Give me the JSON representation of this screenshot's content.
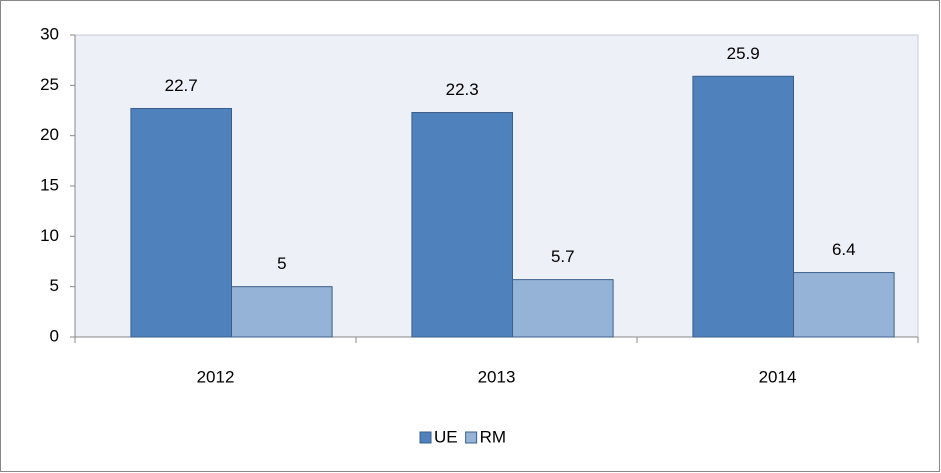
{
  "chart_data": {
    "type": "bar",
    "categories": [
      "2012",
      "2013",
      "2014"
    ],
    "series": [
      {
        "name": "UE",
        "color": "#4f81bd",
        "values": [
          22.7,
          22.3,
          25.9
        ]
      },
      {
        "name": "RM",
        "color": "#95b3d7",
        "values": [
          5,
          5.7,
          6.4
        ]
      }
    ],
    "ylim": [
      0,
      30
    ],
    "yticks": [
      0,
      5,
      10,
      15,
      20,
      25,
      30
    ],
    "grid": false,
    "legend": "bottom"
  }
}
